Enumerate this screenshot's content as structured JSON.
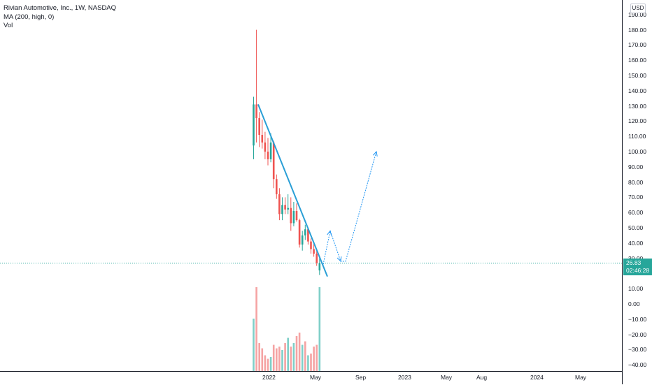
{
  "legend": {
    "title": "Rivian Automotive, Inc., 1W, NASDAQ",
    "indicator": "MA (200, high, 0)",
    "volume": "Vol"
  },
  "currency": "USD",
  "last_price": {
    "value": "26.83",
    "countdown": "02:46:28",
    "price": 26.83,
    "color": "#26a69a"
  },
  "colors": {
    "up": "#26a69a",
    "down": "#ef5350",
    "up_vol": "#7fcfc8",
    "down_vol": "#f5a3a3",
    "trend": "#2a9fd6",
    "arrow": "#2196f3"
  },
  "chart_data": {
    "type": "candlestick",
    "title": "Rivian Automotive, Inc., 1W, NASDAQ",
    "price_axis": {
      "ticks": [
        "190.00",
        "180.00",
        "170.00",
        "160.00",
        "150.00",
        "140.00",
        "130.00",
        "120.00",
        "110.00",
        "100.00",
        "90.00",
        "80.00",
        "70.00",
        "60.00",
        "50.00",
        "40.00",
        "30.00",
        "20.00",
        "10.00",
        "0.00",
        "−10.00",
        "−20.00",
        "−30.00",
        "−40.00"
      ],
      "range": [
        -43,
        195
      ]
    },
    "time_axis": {
      "ticks": [
        "2022",
        "May",
        "Sep",
        "2023",
        "May",
        "Aug",
        "2024",
        "May"
      ]
    },
    "candles": [
      {
        "o": 104,
        "h": 136,
        "l": 95,
        "c": 131
      },
      {
        "o": 131,
        "h": 180,
        "l": 106,
        "c": 122
      },
      {
        "o": 122,
        "h": 126,
        "l": 103,
        "c": 111
      },
      {
        "o": 111,
        "h": 121,
        "l": 102,
        "c": 106
      },
      {
        "o": 106,
        "h": 113,
        "l": 95,
        "c": 100
      },
      {
        "o": 100,
        "h": 109,
        "l": 91,
        "c": 95
      },
      {
        "o": 95,
        "h": 112,
        "l": 93,
        "c": 106
      },
      {
        "o": 106,
        "h": 107,
        "l": 76,
        "c": 82
      },
      {
        "o": 82,
        "h": 85,
        "l": 69,
        "c": 72
      },
      {
        "o": 72,
        "h": 76,
        "l": 55,
        "c": 59
      },
      {
        "o": 59,
        "h": 70,
        "l": 55,
        "c": 65
      },
      {
        "o": 65,
        "h": 70,
        "l": 59,
        "c": 62
      },
      {
        "o": 62,
        "h": 72,
        "l": 59,
        "c": 63
      },
      {
        "o": 63,
        "h": 70,
        "l": 48,
        "c": 53
      },
      {
        "o": 53,
        "h": 67,
        "l": 51,
        "c": 61
      },
      {
        "o": 61,
        "h": 66,
        "l": 54,
        "c": 55
      },
      {
        "o": 55,
        "h": 56,
        "l": 37,
        "c": 39
      },
      {
        "o": 39,
        "h": 48,
        "l": 35,
        "c": 45
      },
      {
        "o": 45,
        "h": 52,
        "l": 42,
        "c": 49
      },
      {
        "o": 49,
        "h": 50,
        "l": 39,
        "c": 41
      },
      {
        "o": 41,
        "h": 43,
        "l": 33,
        "c": 36
      },
      {
        "o": 36,
        "h": 40,
        "l": 31,
        "c": 33
      },
      {
        "o": 33,
        "h": 35,
        "l": 25,
        "c": 27
      },
      {
        "o": 22,
        "h": 31,
        "l": 19,
        "c": 26.83
      }
    ],
    "volume": [
      {
        "v": 30,
        "up": true
      },
      {
        "v": 48,
        "up": false
      },
      {
        "v": 16,
        "up": false
      },
      {
        "v": 13,
        "up": false
      },
      {
        "v": 9,
        "up": false
      },
      {
        "v": 7,
        "up": false
      },
      {
        "v": 8,
        "up": true
      },
      {
        "v": 15,
        "up": false
      },
      {
        "v": 13,
        "up": false
      },
      {
        "v": 14,
        "up": false
      },
      {
        "v": 12,
        "up": true
      },
      {
        "v": 16,
        "up": false
      },
      {
        "v": 19,
        "up": true
      },
      {
        "v": 14,
        "up": false
      },
      {
        "v": 16,
        "up": true
      },
      {
        "v": 20,
        "up": false
      },
      {
        "v": 22,
        "up": false
      },
      {
        "v": 15,
        "up": true
      },
      {
        "v": 17,
        "up": false
      },
      {
        "v": 9,
        "up": true
      },
      {
        "v": 10,
        "up": false
      },
      {
        "v": 14,
        "up": false
      },
      {
        "v": 15,
        "up": false
      },
      {
        "v": 48,
        "up": true
      }
    ],
    "trendline": [
      {
        "price": 131
      },
      {
        "price": 18
      }
    ],
    "projection": [
      {
        "price": 26
      },
      {
        "price": 48
      },
      {
        "price": 28
      },
      {
        "price": 28
      },
      {
        "price": 100
      }
    ]
  }
}
